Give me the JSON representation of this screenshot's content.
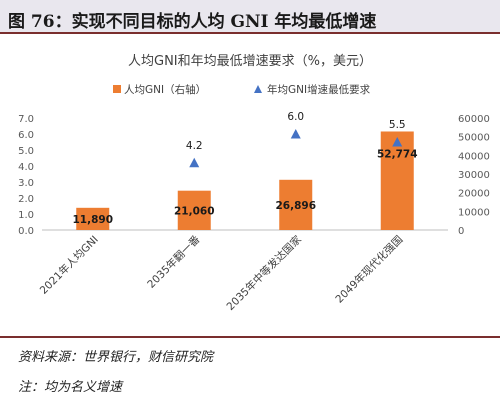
{
  "figure": {
    "title": "图 76：实现不同目标的人均 GNI 年均最低增速",
    "source": "资料来源：世界银行，财信研究院",
    "note": "注：均为名义增速"
  },
  "chart_data": {
    "type": "bar",
    "title": "人均GNI和年均最低增速要求（%，美元）",
    "categories": [
      "2021年人均GNI",
      "2035年翻一番",
      "2035年中等发达国家",
      "2049年现代化强国"
    ],
    "series": [
      {
        "name": "人均GNI（右轴）",
        "type": "bar",
        "axis": "right",
        "color": "#ED7D31",
        "values": [
          11890,
          21060,
          26896,
          52774
        ],
        "labels": [
          "11,890",
          "21,060",
          "26,896",
          "52,774"
        ]
      },
      {
        "name": "年均GNI增速最低要求",
        "type": "scatter",
        "marker": "triangle",
        "axis": "left",
        "color": "#4472C4",
        "values": [
          null,
          4.2,
          6.0,
          5.5
        ],
        "labels": [
          "",
          "4.2",
          "6.0",
          "5.5"
        ]
      }
    ],
    "left_axis": {
      "ticks": [
        "0.0",
        "1.0",
        "2.0",
        "3.0",
        "4.0",
        "5.0",
        "6.0",
        "7.0"
      ],
      "min": 0,
      "max": 7
    },
    "right_axis": {
      "ticks": [
        "0",
        "10000",
        "20000",
        "30000",
        "40000",
        "50000",
        "60000"
      ],
      "min": 0,
      "max": 60000
    },
    "legend_position": "top",
    "grid": false
  }
}
